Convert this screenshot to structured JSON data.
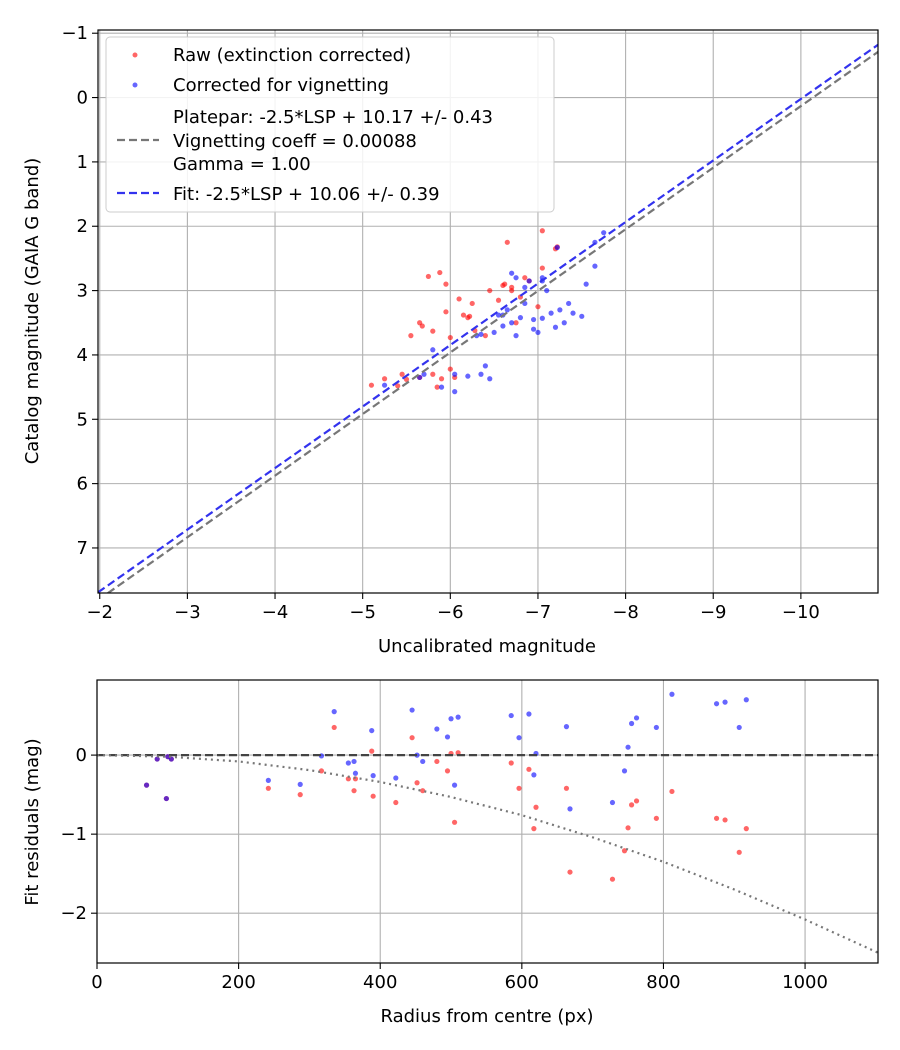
{
  "chart_data": [
    {
      "type": "scatter",
      "xlabel": "Uncalibrated magnitude",
      "ylabel": "Catalog magnitude (GAIA G band)",
      "xlim": [
        -1.98,
        -10.88
      ],
      "ylim": [
        7.7,
        -1.05
      ],
      "grid": true,
      "legend_placement": "top-left",
      "xticks": [
        -2,
        -3,
        -4,
        -5,
        -6,
        -7,
        -8,
        -9,
        -10
      ],
      "xtick_labels": [
        "−2",
        "−3",
        "−4",
        "−5",
        "−6",
        "−7",
        "−8",
        "−9",
        "−10"
      ],
      "yticks": [
        -1,
        0,
        1,
        2,
        3,
        4,
        5,
        6,
        7
      ],
      "ytick_labels": [
        "−1",
        "0",
        "1",
        "2",
        "3",
        "4",
        "5",
        "6",
        "7"
      ],
      "series": [
        {
          "name": "Raw (extinction corrected)",
          "kind": "scatter",
          "color": "#ff0000",
          "points": [
            [
              -5.1,
              4.47
            ],
            [
              -5.25,
              4.37
            ],
            [
              -5.4,
              4.48
            ],
            [
              -5.45,
              4.3
            ],
            [
              -5.5,
              4.38
            ],
            [
              -5.55,
              3.7
            ],
            [
              -5.65,
              4.35
            ],
            [
              -5.65,
              3.5
            ],
            [
              -5.68,
              3.55
            ],
            [
              -5.75,
              2.78
            ],
            [
              -5.8,
              4.3
            ],
            [
              -5.8,
              3.63
            ],
            [
              -5.85,
              4.5
            ],
            [
              -5.88,
              2.72
            ],
            [
              -5.9,
              4.37
            ],
            [
              -5.95,
              3.33
            ],
            [
              -5.95,
              2.9
            ],
            [
              -6.0,
              4.22
            ],
            [
              -6.0,
              3.73
            ],
            [
              -6.05,
              4.35
            ],
            [
              -6.1,
              3.13
            ],
            [
              -6.15,
              3.38
            ],
            [
              -6.2,
              3.42
            ],
            [
              -6.22,
              3.4
            ],
            [
              -6.25,
              3.2
            ],
            [
              -6.28,
              3.62
            ],
            [
              -6.4,
              3.7
            ],
            [
              -6.45,
              3.0
            ],
            [
              -6.55,
              3.15
            ],
            [
              -6.6,
              2.92
            ],
            [
              -6.62,
              2.9
            ],
            [
              -6.65,
              2.25
            ],
            [
              -6.7,
              3.0
            ],
            [
              -6.7,
              2.95
            ],
            [
              -6.75,
              3.5
            ],
            [
              -6.8,
              3.1
            ],
            [
              -6.85,
              2.8
            ],
            [
              -6.9,
              2.85
            ],
            [
              -7.0,
              3.25
            ],
            [
              -7.05,
              2.65
            ],
            [
              -7.05,
              2.07
            ],
            [
              -7.2,
              2.35
            ],
            [
              -7.22,
              2.32
            ]
          ]
        },
        {
          "name": "Corrected for vignetting",
          "kind": "scatter",
          "color": "#0000ff",
          "points": [
            [
              -5.25,
              4.47
            ],
            [
              -5.65,
              4.35
            ],
            [
              -5.7,
              4.3
            ],
            [
              -5.8,
              3.92
            ],
            [
              -5.9,
              4.5
            ],
            [
              -6.05,
              4.57
            ],
            [
              -6.05,
              4.3
            ],
            [
              -6.2,
              4.33
            ],
            [
              -6.3,
              3.7
            ],
            [
              -6.35,
              3.68
            ],
            [
              -6.35,
              4.3
            ],
            [
              -6.4,
              4.17
            ],
            [
              -6.45,
              4.37
            ],
            [
              -6.5,
              3.65
            ],
            [
              -6.55,
              3.38
            ],
            [
              -6.6,
              3.55
            ],
            [
              -6.6,
              3.38
            ],
            [
              -6.65,
              3.3
            ],
            [
              -6.7,
              3.5
            ],
            [
              -6.7,
              2.73
            ],
            [
              -6.75,
              3.7
            ],
            [
              -6.75,
              2.8
            ],
            [
              -6.8,
              3.42
            ],
            [
              -6.85,
              2.95
            ],
            [
              -6.85,
              3.2
            ],
            [
              -6.9,
              2.85
            ],
            [
              -6.95,
              3.45
            ],
            [
              -6.95,
              3.6
            ],
            [
              -7.0,
              3.65
            ],
            [
              -7.05,
              2.85
            ],
            [
              -7.05,
              3.43
            ],
            [
              -7.05,
              2.8
            ],
            [
              -7.1,
              3.0
            ],
            [
              -7.15,
              3.35
            ],
            [
              -7.2,
              3.57
            ],
            [
              -7.22,
              2.33
            ],
            [
              -7.25,
              3.3
            ],
            [
              -7.3,
              3.5
            ],
            [
              -7.35,
              3.2
            ],
            [
              -7.4,
              3.35
            ],
            [
              -7.5,
              3.4
            ],
            [
              -7.55,
              2.9
            ],
            [
              -7.65,
              2.25
            ],
            [
              -7.65,
              2.62
            ],
            [
              -7.75,
              2.1
            ]
          ]
        },
        {
          "name": "Platepar: -2.5*LSP + 10.17 +/- 0.43",
          "label_lines": [
            "Platepar: -2.5*LSP + 10.17 +/- 0.43",
            "Vignetting coeff = 0.00088",
            "Gamma = 1.00"
          ],
          "kind": "line",
          "style": "dashed",
          "color": "#777777",
          "x": [
            -1.98,
            -10.88
          ],
          "y": [
            7.81,
            -0.71
          ]
        },
        {
          "name": "Fit: -2.5*LSP + 10.06 +/- 0.39",
          "kind": "line",
          "style": "dashed",
          "color": "#3333ee",
          "x": [
            -1.98,
            -10.88
          ],
          "y": [
            7.69,
            -0.82
          ]
        }
      ]
    },
    {
      "type": "scatter",
      "xlabel": "Radius from centre (px)",
      "ylabel": "Fit residuals (mag)",
      "xlim": [
        0,
        1103
      ],
      "ylim": [
        -2.63,
        0.95
      ],
      "grid": true,
      "xticks": [
        0,
        200,
        400,
        600,
        800,
        1000
      ],
      "xtick_labels": [
        "0",
        "200",
        "400",
        "600",
        "800",
        "1000"
      ],
      "yticks": [
        0,
        -1,
        -2
      ],
      "ytick_labels": [
        "0",
        "−1",
        "−2"
      ],
      "series": [
        {
          "name": "Raw residuals",
          "kind": "scatter",
          "color": "#ff0000",
          "points": [
            [
              70,
              -0.38
            ],
            [
              85,
              -0.05
            ],
            [
              98,
              -0.55
            ],
            [
              100,
              -0.02
            ],
            [
              105,
              -0.05
            ],
            [
              242,
              -0.42
            ],
            [
              287,
              -0.5
            ],
            [
              317,
              -0.2
            ],
            [
              335,
              0.35
            ],
            [
              355,
              -0.3
            ],
            [
              363,
              -0.45
            ],
            [
              365,
              -0.3
            ],
            [
              388,
              0.05
            ],
            [
              390,
              -0.52
            ],
            [
              422,
              -0.6
            ],
            [
              445,
              0.22
            ],
            [
              452,
              -0.35
            ],
            [
              460,
              -0.45
            ],
            [
              480,
              -0.08
            ],
            [
              495,
              -0.2
            ],
            [
              500,
              0.02
            ],
            [
              505,
              -0.85
            ],
            [
              510,
              0.03
            ],
            [
              585,
              -0.1
            ],
            [
              596,
              -0.42
            ],
            [
              610,
              -0.18
            ],
            [
              617,
              -0.93
            ],
            [
              620,
              -0.66
            ],
            [
              663,
              -0.42
            ],
            [
              668,
              -1.48
            ],
            [
              728,
              -1.57
            ],
            [
              745,
              -1.21
            ],
            [
              750,
              -0.92
            ],
            [
              755,
              -0.63
            ],
            [
              762,
              -0.58
            ],
            [
              790,
              -0.8
            ],
            [
              812,
              -0.46
            ],
            [
              875,
              -0.8
            ],
            [
              887,
              -0.82
            ],
            [
              907,
              -1.23
            ],
            [
              917,
              -0.93
            ]
          ]
        },
        {
          "name": "Corrected residuals",
          "kind": "scatter",
          "color": "#0000ff",
          "points": [
            [
              70,
              -0.38
            ],
            [
              85,
              -0.05
            ],
            [
              98,
              -0.55
            ],
            [
              100,
              -0.02
            ],
            [
              105,
              -0.05
            ],
            [
              242,
              -0.32
            ],
            [
              287,
              -0.37
            ],
            [
              317,
              -0.01
            ],
            [
              335,
              0.55
            ],
            [
              355,
              -0.1
            ],
            [
              363,
              -0.08
            ],
            [
              365,
              -0.23
            ],
            [
              388,
              0.31
            ],
            [
              390,
              -0.26
            ],
            [
              422,
              -0.29
            ],
            [
              445,
              0.57
            ],
            [
              452,
              0.0
            ],
            [
              460,
              -0.08
            ],
            [
              480,
              0.33
            ],
            [
              495,
              0.23
            ],
            [
              500,
              0.46
            ],
            [
              505,
              -0.38
            ],
            [
              510,
              0.48
            ],
            [
              585,
              0.5
            ],
            [
              596,
              0.22
            ],
            [
              610,
              0.52
            ],
            [
              617,
              -0.25
            ],
            [
              620,
              0.02
            ],
            [
              663,
              0.36
            ],
            [
              668,
              -0.68
            ],
            [
              728,
              -0.6
            ],
            [
              745,
              -0.2
            ],
            [
              750,
              0.1
            ],
            [
              755,
              0.4
            ],
            [
              762,
              0.47
            ],
            [
              790,
              0.35
            ],
            [
              812,
              0.77
            ],
            [
              875,
              0.65
            ],
            [
              887,
              0.67
            ],
            [
              907,
              0.35
            ],
            [
              917,
              0.7
            ]
          ]
        },
        {
          "name": "Zero line",
          "kind": "line",
          "style": "dashed",
          "color": "#444444",
          "x": [
            0,
            1103
          ],
          "y": [
            0,
            0
          ]
        },
        {
          "name": "Vignetting curve",
          "kind": "line",
          "style": "dotted",
          "color": "#777777",
          "x": [
            0,
            100,
            200,
            300,
            400,
            500,
            600,
            700,
            800,
            900,
            1000,
            1103
          ],
          "y": [
            0,
            -0.02,
            -0.08,
            -0.19,
            -0.34,
            -0.53,
            -0.76,
            -1.04,
            -1.35,
            -1.7,
            -2.08,
            -2.5
          ]
        }
      ]
    }
  ]
}
